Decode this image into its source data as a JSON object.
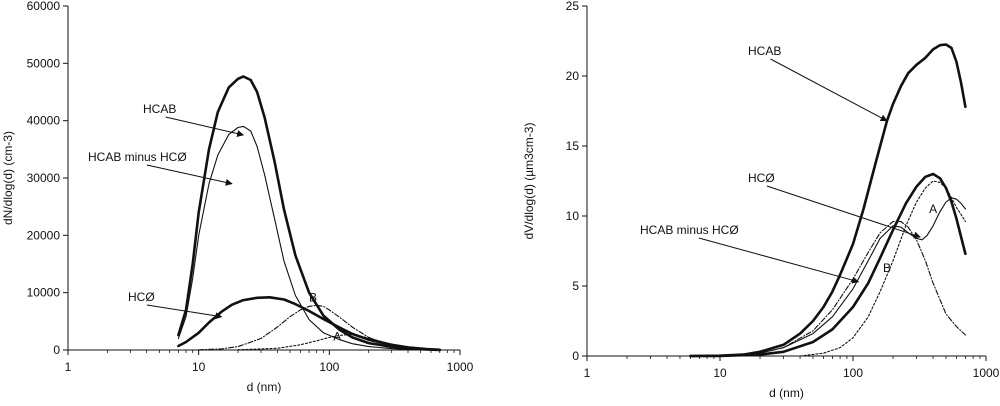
{
  "chart_data": [
    {
      "type": "line",
      "xscale": "log",
      "xlim": [
        1,
        1000
      ],
      "ylim": [
        0,
        60000
      ],
      "xticks": [
        "1",
        "10",
        "100",
        "1000"
      ],
      "yticks": [
        "0",
        "10000",
        "20000",
        "30000",
        "40000",
        "50000",
        "60000"
      ],
      "xlabel": "d (nm)",
      "ylabel": "dN/dlog(d) (cm-3)",
      "grid": false,
      "series": [
        {
          "name": "HCAB",
          "style": "thick",
          "points": [
            [
              7,
              2600
            ],
            [
              8,
              7000
            ],
            [
              9,
              15000
            ],
            [
              10,
              24000
            ],
            [
              12,
              35000
            ],
            [
              14,
              41500
            ],
            [
              17,
              45800
            ],
            [
              20,
              47300
            ],
            [
              22,
              47700
            ],
            [
              25,
              47100
            ],
            [
              28,
              45000
            ],
            [
              32,
              40500
            ],
            [
              38,
              33000
            ],
            [
              45,
              24500
            ],
            [
              55,
              16500
            ],
            [
              70,
              10000
            ],
            [
              90,
              6000
            ],
            [
              120,
              3500
            ],
            [
              150,
              2200
            ],
            [
              200,
              1200
            ],
            [
              300,
              550
            ],
            [
              400,
              250
            ],
            [
              550,
              80
            ],
            [
              700,
              20
            ]
          ]
        },
        {
          "name": "HCAB minus HCØ",
          "style": "thin",
          "points": [
            [
              7,
              2000
            ],
            [
              8,
              5800
            ],
            [
              9,
              12500
            ],
            [
              10,
              20000
            ],
            [
              12,
              29000
            ],
            [
              14,
              34000
            ],
            [
              17,
              37600
            ],
            [
              20,
              38800
            ],
            [
              22,
              39000
            ],
            [
              25,
              38200
            ],
            [
              28,
              35500
            ],
            [
              32,
              30500
            ],
            [
              38,
              23000
            ],
            [
              45,
              15500
            ],
            [
              55,
              9500
            ],
            [
              70,
              5300
            ],
            [
              90,
              3000
            ],
            [
              120,
              1800
            ],
            [
              150,
              1100
            ],
            [
              200,
              600
            ],
            [
              300,
              250
            ],
            [
              400,
              100
            ],
            [
              550,
              30
            ],
            [
              700,
              10
            ]
          ]
        },
        {
          "name": "HCØ",
          "style": "thick",
          "points": [
            [
              7,
              700
            ],
            [
              8,
              1400
            ],
            [
              10,
              3000
            ],
            [
              12,
              4800
            ],
            [
              15,
              6700
            ],
            [
              18,
              7900
            ],
            [
              22,
              8700
            ],
            [
              28,
              9100
            ],
            [
              35,
              9200
            ],
            [
              45,
              8800
            ],
            [
              55,
              8000
            ],
            [
              70,
              6800
            ],
            [
              90,
              5400
            ],
            [
              120,
              3900
            ],
            [
              150,
              2800
            ],
            [
              200,
              1800
            ],
            [
              300,
              900
            ],
            [
              400,
              450
            ],
            [
              550,
              150
            ],
            [
              700,
              30
            ]
          ]
        },
        {
          "name": "B",
          "style": "dashdot",
          "points": [
            [
              10,
              30
            ],
            [
              15,
              200
            ],
            [
              20,
              600
            ],
            [
              30,
              2000
            ],
            [
              40,
              4000
            ],
            [
              50,
              5800
            ],
            [
              60,
              7000
            ],
            [
              70,
              7600
            ],
            [
              80,
              7800
            ],
            [
              90,
              7600
            ],
            [
              100,
              7000
            ],
            [
              120,
              5700
            ],
            [
              150,
              4000
            ],
            [
              200,
              2200
            ],
            [
              300,
              700
            ],
            [
              400,
              250
            ],
            [
              500,
              80
            ]
          ]
        },
        {
          "name": "A",
          "style": "dotted",
          "points": [
            [
              20,
              30
            ],
            [
              40,
              300
            ],
            [
              60,
              900
            ],
            [
              80,
              1600
            ],
            [
              100,
              2200
            ],
            [
              120,
              2550
            ],
            [
              140,
              2700
            ],
            [
              160,
              2600
            ],
            [
              200,
              2100
            ],
            [
              300,
              1000
            ],
            [
              400,
              500
            ],
            [
              500,
              200
            ],
            [
              600,
              60
            ],
            [
              700,
              15
            ]
          ]
        }
      ],
      "annotations": [
        {
          "text": "HCAB",
          "target": [
            22,
            37500
          ]
        },
        {
          "text": "HCAB minus HCØ",
          "target": [
            18,
            29000
          ]
        },
        {
          "text": "HCØ",
          "target": [
            15,
            5800
          ]
        },
        {
          "text": "B",
          "at": [
            75,
            8500
          ]
        },
        {
          "text": "A",
          "at": [
            115,
            1700
          ]
        }
      ]
    },
    {
      "type": "line",
      "xscale": "log",
      "xlim": [
        1,
        1000
      ],
      "ylim": [
        0,
        25
      ],
      "xticks": [
        "1",
        "10",
        "100",
        "1000"
      ],
      "yticks": [
        "0",
        "5",
        "10",
        "15",
        "20",
        "25"
      ],
      "xlabel": "d (nm)",
      "ylabel": "dV/dlog(d) (µm3cm-3)",
      "grid": false,
      "series": [
        {
          "name": "HCAB",
          "style": "thick",
          "points": [
            [
              6,
              0
            ],
            [
              10,
              0.02
            ],
            [
              15,
              0.1
            ],
            [
              20,
              0.3
            ],
            [
              30,
              0.8
            ],
            [
              40,
              1.6
            ],
            [
              50,
              2.5
            ],
            [
              60,
              3.5
            ],
            [
              70,
              4.6
            ],
            [
              80,
              5.8
            ],
            [
              100,
              8
            ],
            [
              120,
              10.5
            ],
            [
              150,
              14
            ],
            [
              180,
              16.8
            ],
            [
              200,
              18
            ],
            [
              230,
              19.3
            ],
            [
              260,
              20.2
            ],
            [
              300,
              20.8
            ],
            [
              350,
              21.3
            ],
            [
              400,
              21.9
            ],
            [
              450,
              22.2
            ],
            [
              500,
              22.25
            ],
            [
              550,
              22
            ],
            [
              600,
              21
            ],
            [
              650,
              19.5
            ],
            [
              700,
              17.8
            ]
          ]
        },
        {
          "name": "HCØ",
          "style": "thick",
          "points": [
            [
              6,
              0
            ],
            [
              10,
              0.01
            ],
            [
              20,
              0.1
            ],
            [
              30,
              0.3
            ],
            [
              50,
              1
            ],
            [
              70,
              1.9
            ],
            [
              100,
              3.5
            ],
            [
              130,
              5.2
            ],
            [
              160,
              7
            ],
            [
              200,
              9
            ],
            [
              250,
              10.9
            ],
            [
              300,
              12.1
            ],
            [
              350,
              12.8
            ],
            [
              400,
              13
            ],
            [
              450,
              12.7
            ],
            [
              500,
              12
            ],
            [
              550,
              11
            ],
            [
              600,
              9.8
            ],
            [
              650,
              8.5
            ],
            [
              700,
              7.3
            ]
          ]
        },
        {
          "name": "HCAB minus HCØ",
          "style": "thin",
          "points": [
            [
              6,
              0
            ],
            [
              10,
              0.02
            ],
            [
              20,
              0.2
            ],
            [
              30,
              0.6
            ],
            [
              50,
              1.6
            ],
            [
              70,
              2.8
            ],
            [
              100,
              4.8
            ],
            [
              130,
              6.8
            ],
            [
              160,
              8.4
            ],
            [
              200,
              9.3
            ],
            [
              230,
              9.2
            ],
            [
              260,
              8.8
            ],
            [
              300,
              8.4
            ],
            [
              330,
              8.3
            ],
            [
              360,
              8.6
            ],
            [
              400,
              9.3
            ],
            [
              450,
              10.3
            ],
            [
              500,
              11
            ],
            [
              550,
              11.3
            ],
            [
              600,
              11.2
            ],
            [
              650,
              10.9
            ],
            [
              700,
              10.5
            ]
          ]
        },
        {
          "name": "B",
          "style": "dashdot",
          "points": [
            [
              6,
              0
            ],
            [
              10,
              0.02
            ],
            [
              20,
              0.2
            ],
            [
              30,
              0.6
            ],
            [
              50,
              1.8
            ],
            [
              70,
              3.3
            ],
            [
              100,
              5.5
            ],
            [
              130,
              7.4
            ],
            [
              160,
              8.8
            ],
            [
              200,
              9.6
            ],
            [
              230,
              9.6
            ],
            [
              260,
              9.2
            ],
            [
              300,
              8.3
            ],
            [
              350,
              6.8
            ],
            [
              400,
              5.2
            ],
            [
              500,
              3
            ],
            [
              600,
              2.1
            ],
            [
              700,
              1.5
            ]
          ]
        },
        {
          "name": "A",
          "style": "dotted",
          "points": [
            [
              40,
              0
            ],
            [
              60,
              0.2
            ],
            [
              80,
              0.6
            ],
            [
              100,
              1.3
            ],
            [
              130,
              2.8
            ],
            [
              160,
              4.6
            ],
            [
              200,
              6.8
            ],
            [
              250,
              9.3
            ],
            [
              300,
              11
            ],
            [
              350,
              12
            ],
            [
              400,
              12.5
            ],
            [
              450,
              12.4
            ],
            [
              500,
              12
            ],
            [
              550,
              11.3
            ],
            [
              600,
              10.6
            ],
            [
              650,
              10.1
            ],
            [
              700,
              9.6
            ]
          ]
        }
      ],
      "annotations": [
        {
          "text": "HCAB",
          "target": [
            180,
            16.8
          ]
        },
        {
          "text": "HCØ",
          "target": [
            320,
            8.5
          ]
        },
        {
          "text": "HCAB minus HCØ",
          "target": [
            110,
            5.3
          ]
        },
        {
          "text": "B",
          "at": [
            180,
            6
          ]
        },
        {
          "text": "A",
          "at": [
            400,
            10.2
          ]
        }
      ]
    }
  ]
}
